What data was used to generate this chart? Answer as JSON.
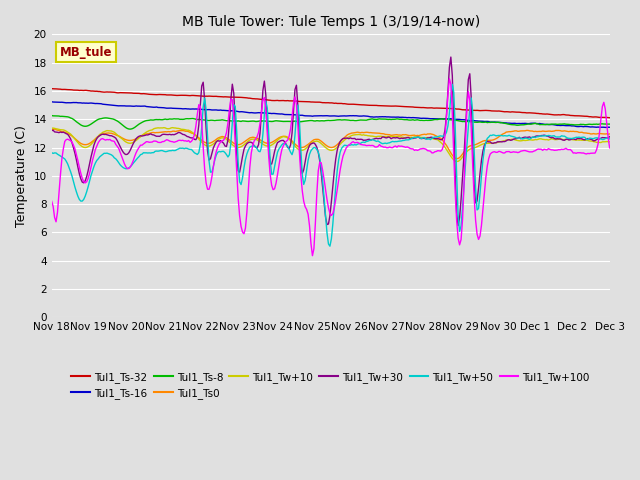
{
  "title": "MB Tule Tower: Tule Temps 1 (3/19/14-now)",
  "ylabel": "Temperature (C)",
  "ylim": [
    0,
    20
  ],
  "yticks": [
    0,
    2,
    4,
    6,
    8,
    10,
    12,
    14,
    16,
    18,
    20
  ],
  "bg_color": "#e0e0e0",
  "grid_color": "#ffffff",
  "annotation_text": "MB_tule",
  "annotation_fg": "#990000",
  "annotation_bg": "#ffffcc",
  "annotation_border": "#cccc00",
  "x_ticks_labels": [
    "Nov 18",
    "Nov 19",
    "Nov 20",
    "Nov 21",
    "Nov 22",
    "Nov 23",
    "Nov 24",
    "Nov 25",
    "Nov 26",
    "Nov 27",
    "Nov 28",
    "Nov 29",
    "Nov 30",
    "Dec 1",
    "Dec 2",
    "Dec 3"
  ],
  "series": [
    {
      "label": "Tul1_Ts-32",
      "color": "#cc0000"
    },
    {
      "label": "Tul1_Ts-16",
      "color": "#0000cc"
    },
    {
      "label": "Tul1_Ts-8",
      "color": "#00bb00"
    },
    {
      "label": "Tul1_Ts0",
      "color": "#ff8800"
    },
    {
      "label": "Tul1_Tw+10",
      "color": "#cccc00"
    },
    {
      "label": "Tul1_Tw+30",
      "color": "#880088"
    },
    {
      "label": "Tul1_Tw+50",
      "color": "#00cccc"
    },
    {
      "label": "Tul1_Tw+100",
      "color": "#ff00ff"
    }
  ]
}
